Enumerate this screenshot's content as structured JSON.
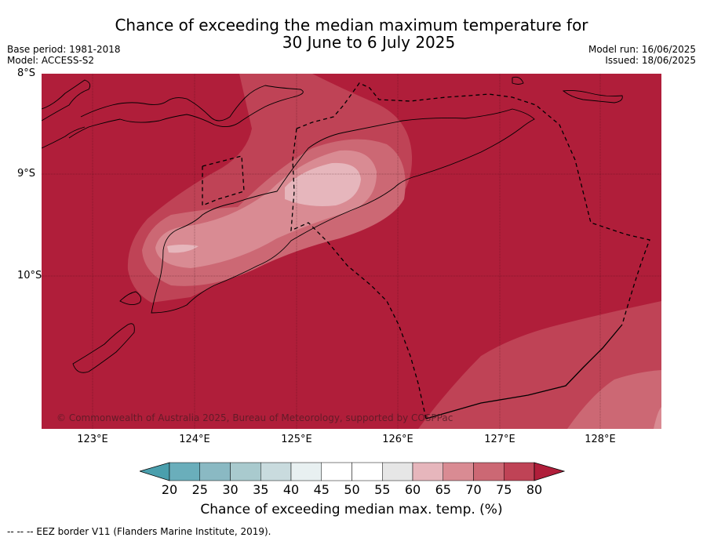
{
  "header": {
    "title_line1": "Chance of exceeding the median maximum temperature for",
    "title_line2": "30 June to 6 July 2025",
    "base_period": "Base period: 1981-2018",
    "model": "Model: ACCESS-S2",
    "model_run": "Model run: 16/06/2025",
    "issued": "Issued: 18/06/2025"
  },
  "map": {
    "lat_labels": [
      "8°S",
      "9°S",
      "10°S"
    ],
    "lon_labels": [
      "123°E",
      "124°E",
      "125°E",
      "126°E",
      "127°E",
      "128°E"
    ],
    "copyright": "© Commonwealth of Australia 2025, Bureau of Meteorology, supported by COSPPac",
    "colors": {
      "gt80": "#b01e3a",
      "c75_80": "#bf4356",
      "c70_75": "#cc6874",
      "c65_70": "#d98b93",
      "c60_65": "#e6b6bc",
      "land_line": "#000000"
    }
  },
  "colorbar": {
    "ticks": [
      "20",
      "25",
      "30",
      "35",
      "40",
      "45",
      "50",
      "55",
      "60",
      "65",
      "70",
      "75",
      "80"
    ],
    "colors": [
      "#4a9fad",
      "#6aaebb",
      "#8ab9c3",
      "#a9cace",
      "#c9dbde",
      "#e8f0f1",
      "#ffffff",
      "#ffffff",
      "#e6e6e6",
      "#e6b6bc",
      "#d98b93",
      "#cc6874",
      "#bf4356",
      "#b01e3a"
    ],
    "label": "Chance of exceeding median max. temp. (%)"
  },
  "footer": {
    "legend_note": "--  --  -- EEZ border V11 (Flanders Marine Institute, 2019)."
  }
}
